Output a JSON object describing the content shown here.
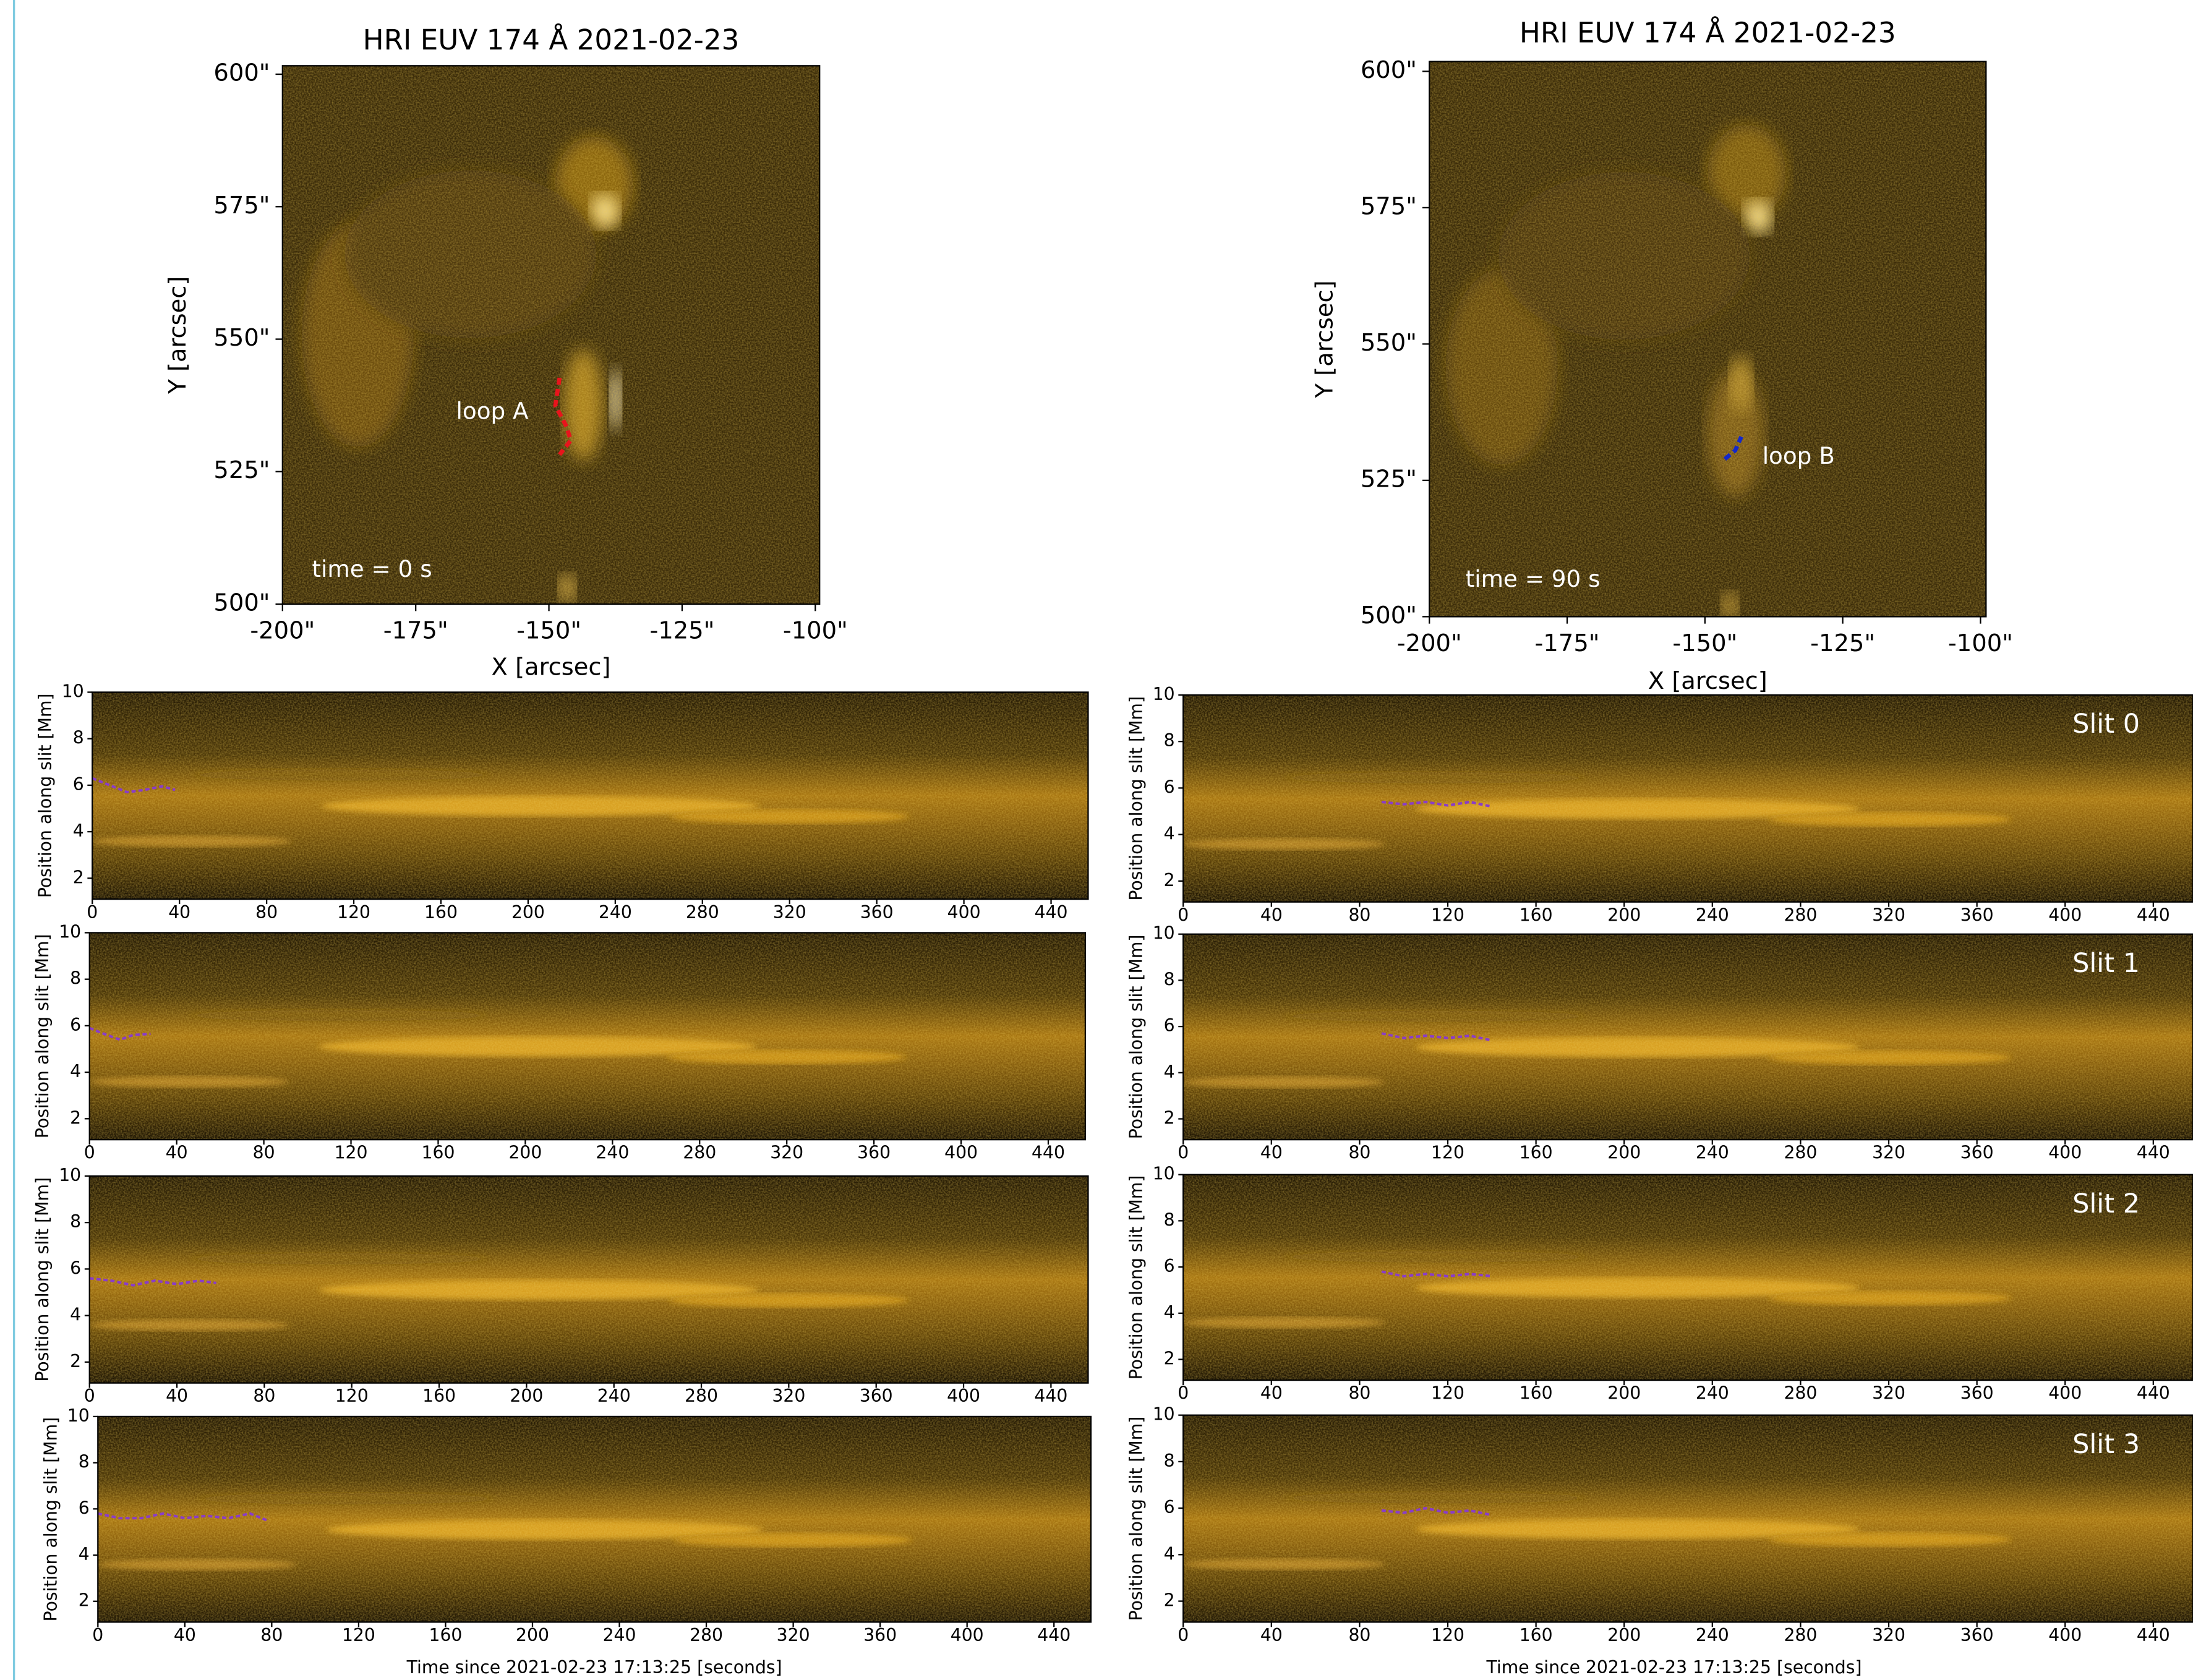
{
  "chart_data": [
    {
      "type": "image",
      "title": "HRI EUV 174 Å 2021-02-23",
      "xlabel": "X [arcsec]",
      "ylabel": "Y [arcsec]",
      "xlim": [
        -200,
        -99.2
      ],
      "ylim": [
        500,
        601.6
      ],
      "xticks": [
        {
          "value": -200,
          "label": "-200\""
        },
        {
          "value": -175,
          "label": "-175\""
        },
        {
          "value": -150,
          "label": "-150\""
        },
        {
          "value": -125,
          "label": "-125\""
        },
        {
          "value": -100,
          "label": "-100\""
        }
      ],
      "yticks": [
        {
          "value": 500,
          "label": "500\""
        },
        {
          "value": 525,
          "label": "525\""
        },
        {
          "value": 550,
          "label": "550\""
        },
        {
          "value": 575,
          "label": "575\""
        },
        {
          "value": 600,
          "label": "600\""
        }
      ],
      "annotations": [
        "loop A",
        "time = 0 s"
      ],
      "traces": [
        {
          "color": "#e8141c",
          "x": [
            -148,
            -148.8,
            -146.7,
            -145.9,
            -148
          ],
          "y": [
            542.7,
            537.5,
            533.5,
            530.9,
            528.2
          ]
        }
      ]
    },
    {
      "type": "image",
      "title": "HRI EUV 174 Å 2021-02-23",
      "xlabel": "X [arcsec]",
      "ylabel": "Y [arcsec]",
      "xlim": [
        -200,
        -99
      ],
      "ylim": [
        500,
        601.8
      ],
      "xticks": [
        {
          "value": -200,
          "label": "-200\""
        },
        {
          "value": -175,
          "label": "-175\""
        },
        {
          "value": -150,
          "label": "-150\""
        },
        {
          "value": -125,
          "label": "-125\""
        },
        {
          "value": -100,
          "label": "-100\""
        }
      ],
      "yticks": [
        {
          "value": 500,
          "label": "500\""
        },
        {
          "value": 525,
          "label": "525\""
        },
        {
          "value": 550,
          "label": "550\""
        },
        {
          "value": 575,
          "label": "575\""
        },
        {
          "value": 600,
          "label": "600\""
        }
      ],
      "annotations": [
        "loop B",
        "time = 90 s"
      ],
      "traces": [
        {
          "color": "#1428c8",
          "x": [
            -146.4,
            -144.5,
            -143.4
          ],
          "y": [
            528.9,
            530.5,
            533
          ]
        }
      ]
    },
    {
      "type": "image",
      "ylabel": "Position along slit [Mm]",
      "xlim": [
        0,
        457
      ],
      "ylim": [
        1.1,
        10
      ],
      "xticks": [
        0,
        40,
        80,
        120,
        160,
        200,
        240,
        280,
        320,
        360,
        400,
        440
      ],
      "yticks": [
        2,
        4,
        6,
        8,
        10
      ],
      "traces": [
        {
          "color": "#8a3cc8",
          "x": [
            0,
            8,
            16,
            24,
            32,
            38
          ],
          "y": [
            6.3,
            6.0,
            5.7,
            5.8,
            5.95,
            5.8
          ]
        }
      ]
    },
    {
      "type": "image",
      "ylabel": "Position along slit [Mm]",
      "label": "Slit 0",
      "xlim": [
        0,
        458
      ],
      "ylim": [
        1.1,
        10
      ],
      "xticks": [
        0,
        40,
        80,
        120,
        160,
        200,
        240,
        280,
        320,
        360,
        400,
        440
      ],
      "yticks": [
        2,
        4,
        6,
        8,
        10
      ],
      "traces": [
        {
          "color": "#8a3cc8",
          "x": [
            90,
            100,
            110,
            120,
            130,
            140
          ],
          "y": [
            5.4,
            5.3,
            5.4,
            5.25,
            5.4,
            5.2
          ]
        }
      ]
    },
    {
      "type": "image",
      "ylabel": "Position along slit [Mm]",
      "xlim": [
        0,
        457
      ],
      "ylim": [
        1.1,
        10
      ],
      "xticks": [
        0,
        40,
        80,
        120,
        160,
        200,
        240,
        280,
        320,
        360,
        400,
        440
      ],
      "yticks": [
        2,
        4,
        6,
        8,
        10
      ],
      "traces": [
        {
          "color": "#8a3cc8",
          "x": [
            0,
            8,
            14,
            20,
            28
          ],
          "y": [
            5.9,
            5.6,
            5.4,
            5.6,
            5.65
          ]
        }
      ]
    },
    {
      "type": "image",
      "ylabel": "Position along slit [Mm]",
      "label": "Slit 1",
      "xlim": [
        0,
        458
      ],
      "ylim": [
        1.1,
        10
      ],
      "xticks": [
        0,
        40,
        80,
        120,
        160,
        200,
        240,
        280,
        320,
        360,
        400,
        440
      ],
      "yticks": [
        2,
        4,
        6,
        8,
        10
      ],
      "traces": [
        {
          "color": "#8a3cc8",
          "x": [
            90,
            100,
            110,
            120,
            130,
            140
          ],
          "y": [
            5.7,
            5.5,
            5.6,
            5.5,
            5.6,
            5.4
          ]
        }
      ]
    },
    {
      "type": "image",
      "ylabel": "Position along slit [Mm]",
      "xlim": [
        0,
        457
      ],
      "ylim": [
        1.1,
        10
      ],
      "xticks": [
        0,
        40,
        80,
        120,
        160,
        200,
        240,
        280,
        320,
        360,
        400,
        440
      ],
      "yticks": [
        2,
        4,
        6,
        8,
        10
      ],
      "traces": [
        {
          "color": "#8a3cc8",
          "x": [
            0,
            10,
            20,
            30,
            40,
            50,
            58
          ],
          "y": [
            5.6,
            5.5,
            5.3,
            5.5,
            5.35,
            5.5,
            5.4
          ]
        }
      ]
    },
    {
      "type": "image",
      "ylabel": "Position along slit [Mm]",
      "label": "Slit 2",
      "xlim": [
        0,
        458
      ],
      "ylim": [
        1.1,
        10
      ],
      "xticks": [
        0,
        40,
        80,
        120,
        160,
        200,
        240,
        280,
        320,
        360,
        400,
        440
      ],
      "yticks": [
        2,
        4,
        6,
        8,
        10
      ],
      "traces": [
        {
          "color": "#8a3cc8",
          "x": [
            90,
            100,
            110,
            120,
            130,
            140
          ],
          "y": [
            5.8,
            5.6,
            5.7,
            5.6,
            5.7,
            5.6
          ]
        }
      ]
    },
    {
      "type": "image",
      "ylabel": "Position along slit [Mm]",
      "xlabel": "Time since 2021-02-23 17:13:25 [seconds]",
      "xlim": [
        0,
        457
      ],
      "ylim": [
        1.1,
        10
      ],
      "xticks": [
        0,
        40,
        80,
        120,
        160,
        200,
        240,
        280,
        320,
        360,
        400,
        440
      ],
      "yticks": [
        2,
        4,
        6,
        8,
        10
      ],
      "traces": [
        {
          "color": "#8a3cc8",
          "x": [
            0,
            10,
            20,
            30,
            40,
            50,
            60,
            70,
            78
          ],
          "y": [
            5.8,
            5.6,
            5.6,
            5.8,
            5.6,
            5.7,
            5.6,
            5.8,
            5.5
          ]
        }
      ]
    },
    {
      "type": "image",
      "ylabel": "Position along slit [Mm]",
      "xlabel": "Time since 2021-02-23 17:13:25 [seconds]",
      "label": "Slit 3",
      "xlim": [
        0,
        458
      ],
      "ylim": [
        1.1,
        10
      ],
      "xticks": [
        0,
        40,
        80,
        120,
        160,
        200,
        240,
        280,
        320,
        360,
        400,
        440
      ],
      "yticks": [
        2,
        4,
        6,
        8,
        10
      ],
      "traces": [
        {
          "color": "#8a3cc8",
          "x": [
            90,
            100,
            110,
            120,
            130,
            140
          ],
          "y": [
            5.9,
            5.8,
            6.0,
            5.8,
            5.9,
            5.7
          ]
        }
      ]
    }
  ]
}
